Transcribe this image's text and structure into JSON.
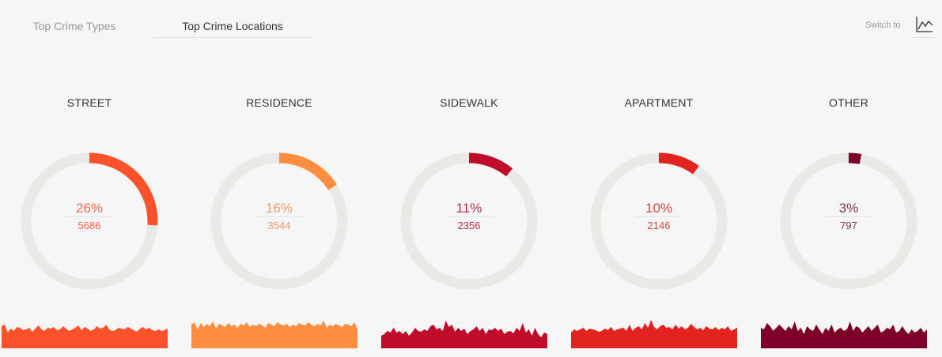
{
  "tabs": [
    {
      "label": "Top Crime Types",
      "active": false
    },
    {
      "label": "Top Crime Locations",
      "active": true
    }
  ],
  "switch": {
    "label": "Switch to",
    "icon": "line-chart-icon"
  },
  "colors": {
    "track": "#ebe9e5",
    "background": "#f6f6f6"
  },
  "chart_data": {
    "type": "donut",
    "categories": [
      "STREET",
      "RESIDENCE",
      "SIDEWALK",
      "APARTMENT",
      "OTHER"
    ],
    "items": [
      {
        "label": "STREET",
        "percent_label": "26%",
        "percent": 26,
        "count": "5686",
        "color": "#fb522d",
        "text_color": "#f26749",
        "trend": [
          28,
          30,
          20,
          25,
          22,
          27,
          26,
          23,
          24,
          26,
          21,
          25,
          29,
          24,
          22,
          26,
          25,
          27,
          23,
          24,
          28,
          25,
          22,
          24,
          26,
          29,
          23,
          27,
          25,
          22,
          24,
          28,
          25,
          26,
          30,
          24,
          22,
          23,
          26,
          25,
          24,
          27,
          25,
          23,
          21,
          25,
          27,
          24,
          26,
          23,
          22,
          24,
          22,
          23,
          25
        ]
      },
      {
        "label": "RESIDENCE",
        "percent_label": "16%",
        "percent": 16,
        "count": "3544",
        "color": "#fd8e3f",
        "text_color": "#f39a69",
        "trend": [
          30,
          33,
          24,
          32,
          27,
          31,
          28,
          34,
          25,
          31,
          29,
          27,
          32,
          28,
          30,
          26,
          31,
          29,
          33,
          27,
          30,
          28,
          31,
          29,
          26,
          32,
          30,
          28,
          33,
          30,
          29,
          31,
          27,
          30,
          28,
          32,
          30,
          29,
          33,
          30,
          28,
          31,
          29,
          35,
          26,
          30,
          28,
          31,
          29,
          27,
          31,
          30,
          28,
          33,
          24
        ]
      },
      {
        "label": "SIDEWALK",
        "percent_label": "11%",
        "percent": 11,
        "count": "2356",
        "color": "#bf0c2b",
        "text_color": "#b53046",
        "trend": [
          16,
          18,
          22,
          20,
          26,
          20,
          22,
          18,
          22,
          16,
          20,
          26,
          22,
          21,
          24,
          22,
          28,
          30,
          24,
          26,
          22,
          35,
          27,
          30,
          21,
          26,
          22,
          25,
          18,
          22,
          24,
          28,
          22,
          26,
          18,
          24,
          23,
          26,
          22,
          25,
          18,
          21,
          22,
          19,
          26,
          22,
          32,
          20,
          24,
          16,
          26,
          18,
          14,
          20,
          18
        ]
      },
      {
        "label": "APARTMENT",
        "percent_label": "10%",
        "percent": 10,
        "count": "2146",
        "color": "#e32320",
        "text_color": "#d1493d",
        "trend": [
          20,
          24,
          22,
          24,
          26,
          22,
          25,
          24,
          23,
          21,
          22,
          25,
          23,
          27,
          22,
          24,
          25,
          26,
          22,
          30,
          22,
          26,
          28,
          24,
          32,
          26,
          36,
          27,
          24,
          28,
          30,
          26,
          27,
          24,
          30,
          25,
          28,
          24,
          26,
          31,
          27,
          24,
          26,
          23,
          28,
          25,
          24,
          27,
          23,
          26,
          24,
          28,
          22,
          24,
          26
        ]
      },
      {
        "label": "OTHER",
        "percent_label": "3%",
        "percent": 3,
        "count": "797",
        "color": "#7d0029",
        "text_color": "#7d3550",
        "trend": [
          26,
          24,
          32,
          28,
          22,
          26,
          30,
          26,
          22,
          28,
          24,
          34,
          22,
          26,
          18,
          28,
          24,
          22,
          30,
          24,
          18,
          26,
          22,
          30,
          20,
          24,
          26,
          22,
          24,
          34,
          22,
          28,
          26,
          20,
          24,
          28,
          22,
          26,
          30,
          20,
          22,
          26,
          24,
          30,
          20,
          22,
          28,
          22,
          18,
          24,
          20,
          22,
          26,
          20,
          24
        ]
      }
    ]
  }
}
